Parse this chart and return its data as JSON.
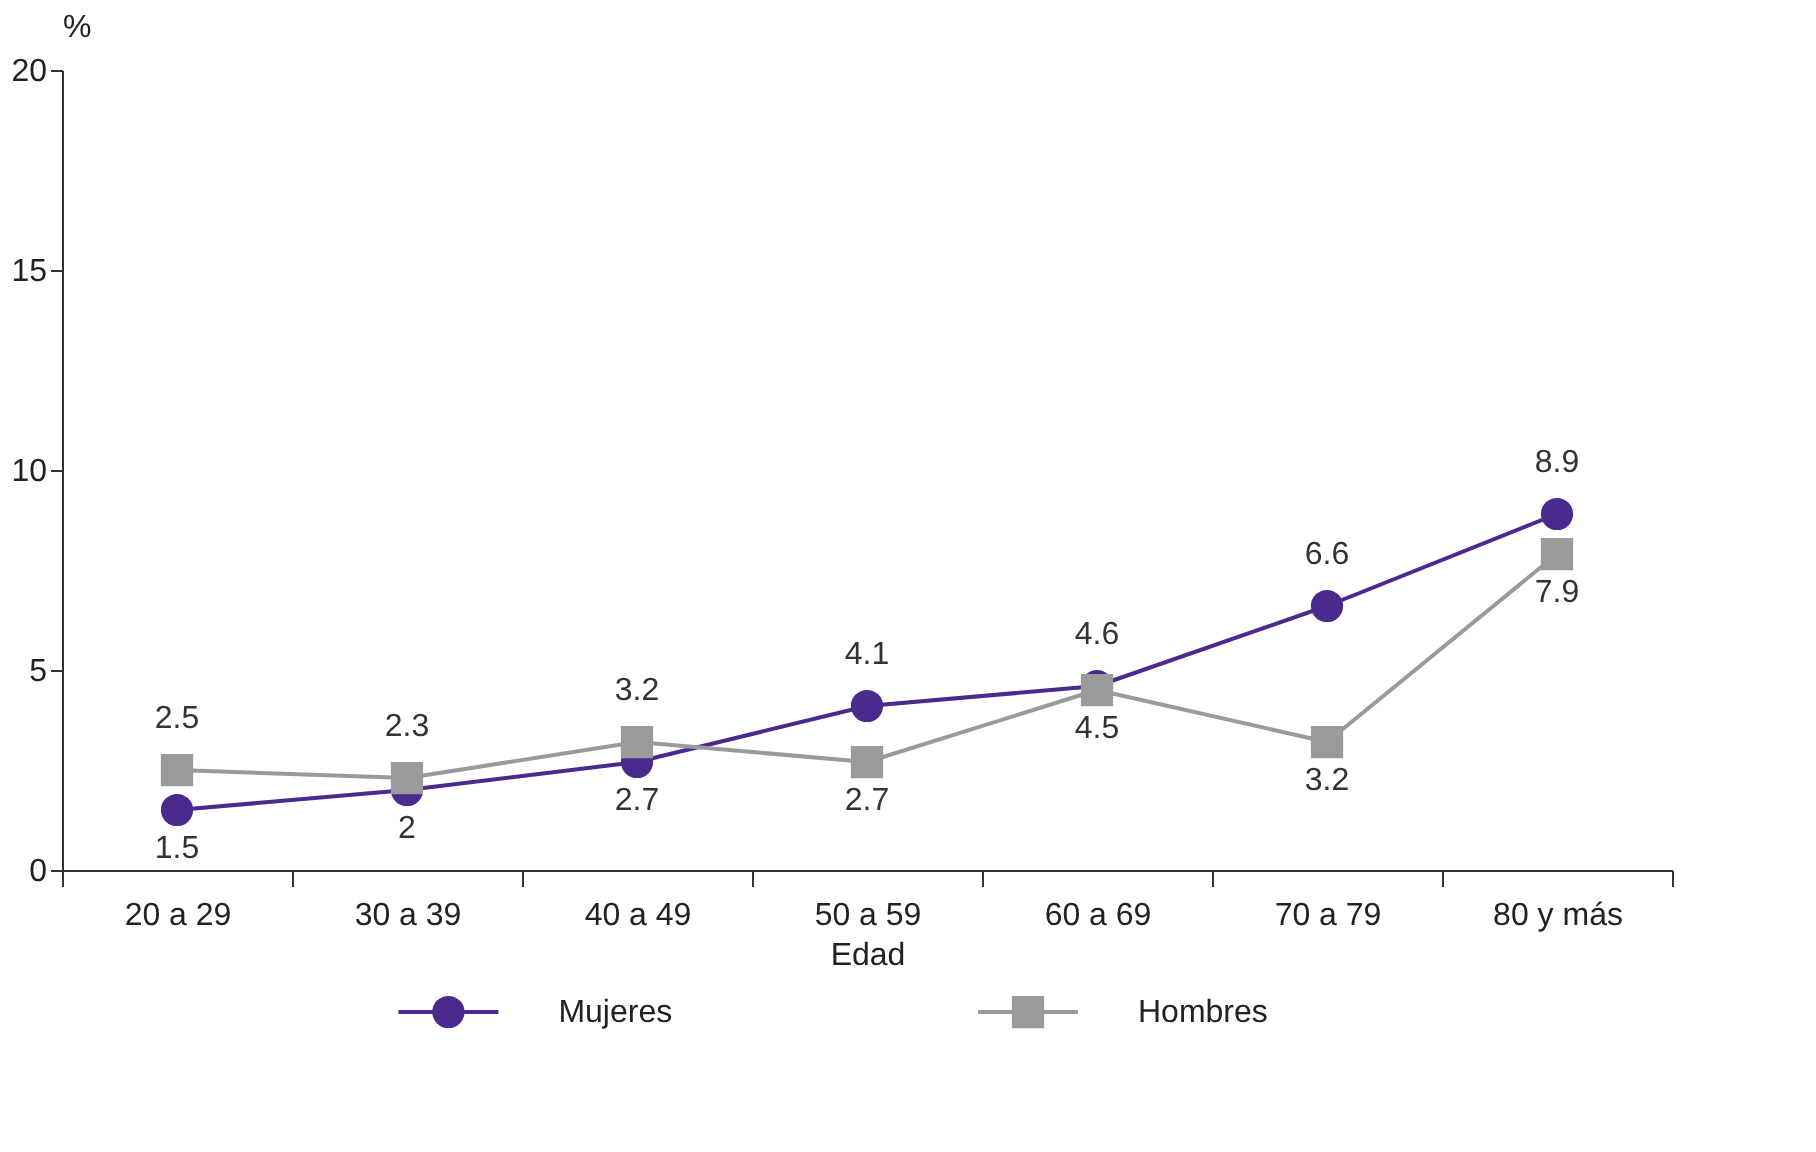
{
  "chart_data": {
    "type": "line",
    "xlabel": "Edad",
    "ylabel": "%",
    "categories": [
      "20 a 29",
      "30 a 39",
      "40 a 49",
      "50 a 59",
      "60 a 69",
      "70 a 79",
      "80 y más"
    ],
    "series": [
      {
        "name": "Mujeres",
        "color": "#4a2a8c",
        "marker": "circle",
        "values": [
          1.5,
          2,
          2.7,
          4.1,
          4.6,
          6.6,
          8.9
        ]
      },
      {
        "name": "Hombres",
        "color": "#9a9a9a",
        "marker": "square",
        "values": [
          2.5,
          2.3,
          3.2,
          2.7,
          4.5,
          3.2,
          7.9
        ]
      }
    ],
    "ylim": [
      0,
      20
    ],
    "yticks": [
      0,
      5,
      10,
      15,
      20
    ],
    "data_labels": true,
    "grid": false,
    "legend": "bottom",
    "line_style": "solid"
  }
}
